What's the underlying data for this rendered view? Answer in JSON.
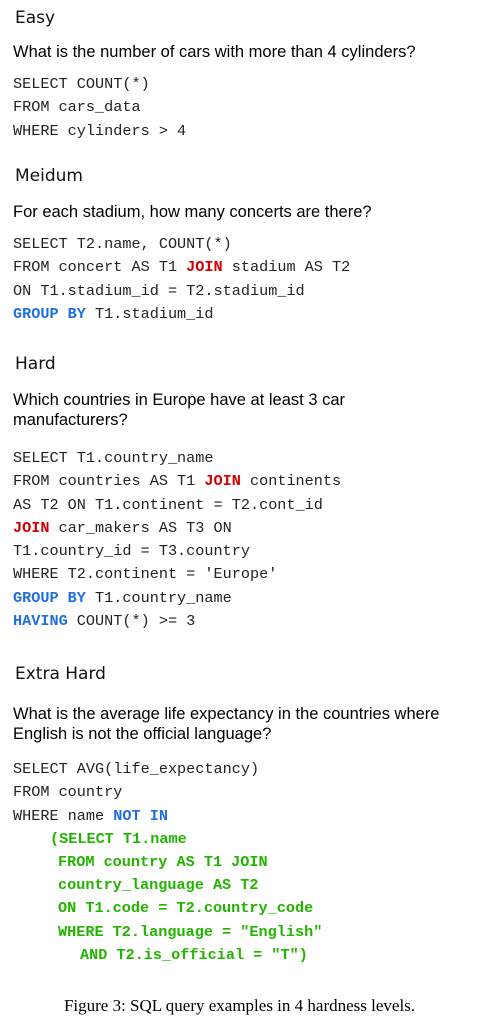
{
  "sections": [
    {
      "level": "Easy",
      "question": "What is the number of cars with more than 4 cylinders?",
      "sql": [
        "SELECT COUNT(*)",
        "FROM cars_data",
        "WHERE cylinders > 4"
      ]
    },
    {
      "level": "Meidum",
      "question": "For each stadium, how many concerts are there?",
      "sql": {
        "l1": "SELECT T2.name, COUNT(*)",
        "l2a": "FROM concert AS T1 ",
        "l2kw": "JOIN",
        "l2b": " stadium AS T2",
        "l3": "ON T1.stadium_id = T2.stadium_id",
        "l4kw": "GROUP BY",
        "l4b": " T1.stadium_id"
      }
    },
    {
      "level": "Hard",
      "question": "Which countries in Europe have at least 3 car manufacturers?",
      "sql": {
        "l1": "SELECT T1.country_name",
        "l2a": "FROM countries AS T1 ",
        "l2kw": "JOIN",
        "l2b": " continents",
        "l3": "AS T2 ON T1.continent = T2.cont_id",
        "l4kw": "JOIN",
        "l4b": " car_makers AS T3 ON",
        "l5": "T1.country_id = T3.country",
        "l6": "WHERE T2.continent = 'Europe'",
        "l7kw": "GROUP BY",
        "l7b": " T1.country_name",
        "l8kw": "HAVING",
        "l8b": " COUNT(*) >= 3"
      }
    },
    {
      "level": "Extra Hard",
      "question": "What is the average life expectancy in the countries where English is not the official language?",
      "sql": {
        "l1": "SELECT AVG(life_expectancy)",
        "l2": "FROM country",
        "l3a": "WHERE name ",
        "l3kw": "NOT IN",
        "sub": [
          "(SELECT T1.name",
          "FROM country AS T1 JOIN",
          "country_language AS T2",
          "ON T1.code = T2.country_code",
          "WHERE T2.language = \"English\"",
          "AND T2.is_official = \"T\")"
        ]
      }
    }
  ],
  "caption": "Figure 3: SQL query examples in 4 hardness levels."
}
